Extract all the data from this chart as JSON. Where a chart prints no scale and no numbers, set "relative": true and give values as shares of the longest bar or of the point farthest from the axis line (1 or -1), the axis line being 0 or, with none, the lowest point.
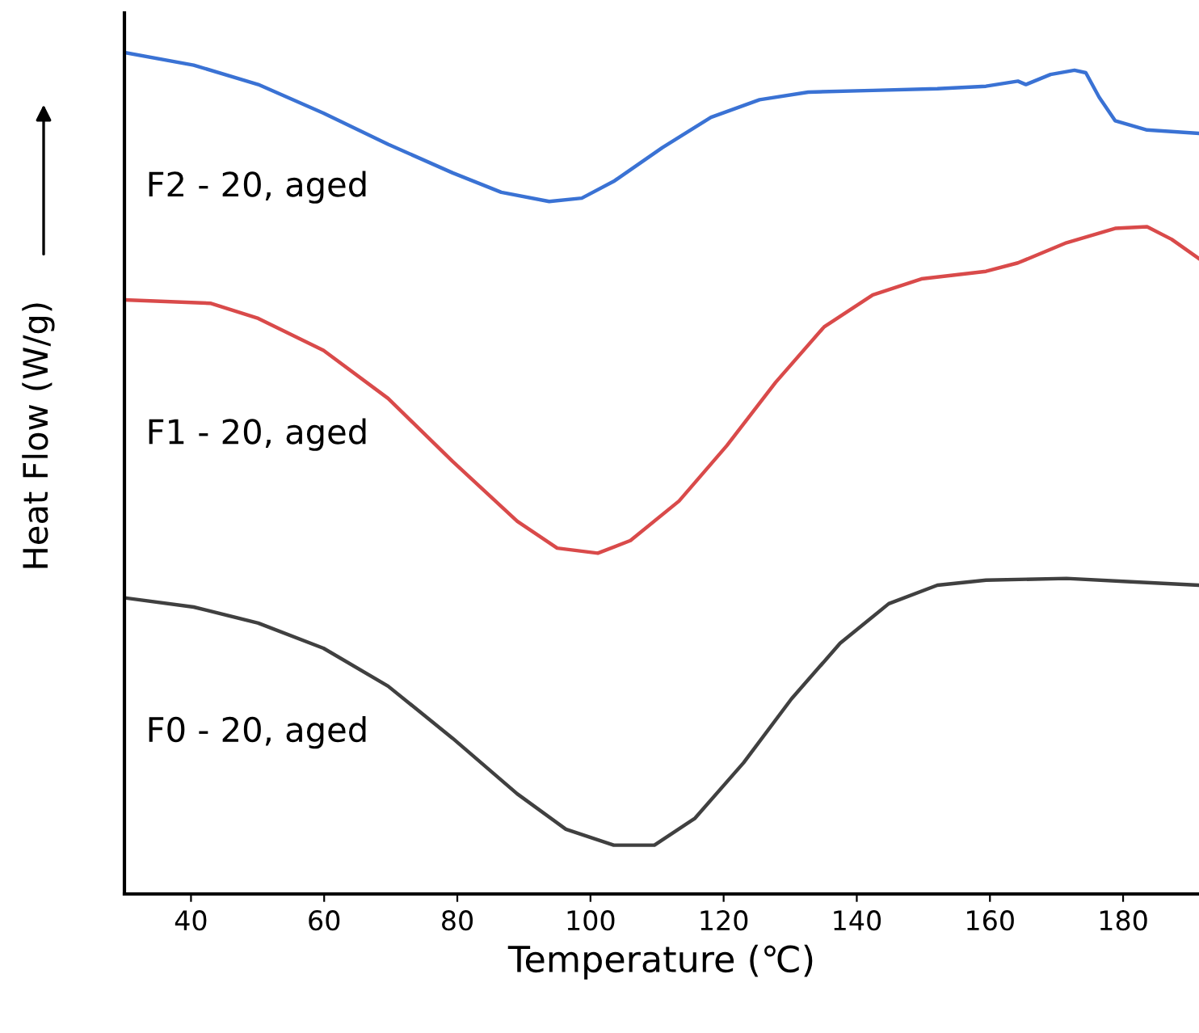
{
  "chart_data": {
    "type": "line",
    "xlabel": "Temperature (℃)",
    "ylabel": "Heat Flow (W/g)",
    "relative": true,
    "xlim": [
      30,
      191.4
    ],
    "xticks": [
      40,
      60,
      80,
      100,
      120,
      140,
      160,
      180
    ],
    "tick_labels": "x",
    "grid": false,
    "legend": false,
    "marker": "none",
    "line_style": "solid",
    "series": [
      {
        "name": "F2 - 20, aged",
        "color": "#3a72d4",
        "x": [
          30,
          40.4,
          50.1,
          59.9,
          69.6,
          79.3,
          86.6,
          93.8,
          98.7,
          103.5,
          110.8,
          118.1,
          125.4,
          132.7,
          142.4,
          152.1,
          159.4,
          164.2,
          165.4,
          169.1,
          172.7,
          174.4,
          176.4,
          178.8,
          183.6,
          191.4
        ],
        "values": [
          1.0,
          0.985,
          0.962,
          0.928,
          0.891,
          0.857,
          0.834,
          0.823,
          0.827,
          0.847,
          0.887,
          0.923,
          0.944,
          0.953,
          0.955,
          0.957,
          0.96,
          0.966,
          0.962,
          0.974,
          0.979,
          0.976,
          0.947,
          0.919,
          0.908,
          0.904
        ]
      },
      {
        "name": "F1 - 20, aged",
        "color": "#d94a4a",
        "x": [
          30,
          42.9,
          50.1,
          59.9,
          69.6,
          79.3,
          89,
          95,
          101.1,
          106,
          113.3,
          120.5,
          127.8,
          135.1,
          142.4,
          149.7,
          159.4,
          164.2,
          171.5,
          178.8,
          183.6,
          187.3,
          191.4
        ],
        "values": [
          0.706,
          0.702,
          0.684,
          0.646,
          0.589,
          0.514,
          0.443,
          0.411,
          0.405,
          0.42,
          0.467,
          0.533,
          0.608,
          0.674,
          0.712,
          0.731,
          0.74,
          0.75,
          0.774,
          0.791,
          0.793,
          0.778,
          0.755
        ]
      },
      {
        "name": "F0 - 20, aged",
        "color": "#404040",
        "x": [
          30,
          40.4,
          50.1,
          59.9,
          69.6,
          79.3,
          89,
          96.3,
          103.5,
          109.6,
          115.7,
          123,
          130.2,
          137.5,
          144.8,
          152.1,
          159.4,
          171.5,
          181.2,
          191.4
        ],
        "values": [
          0.352,
          0.341,
          0.322,
          0.292,
          0.247,
          0.185,
          0.119,
          0.077,
          0.058,
          0.058,
          0.09,
          0.156,
          0.232,
          0.298,
          0.345,
          0.367,
          0.373,
          0.375,
          0.371,
          0.367
        ]
      }
    ]
  }
}
